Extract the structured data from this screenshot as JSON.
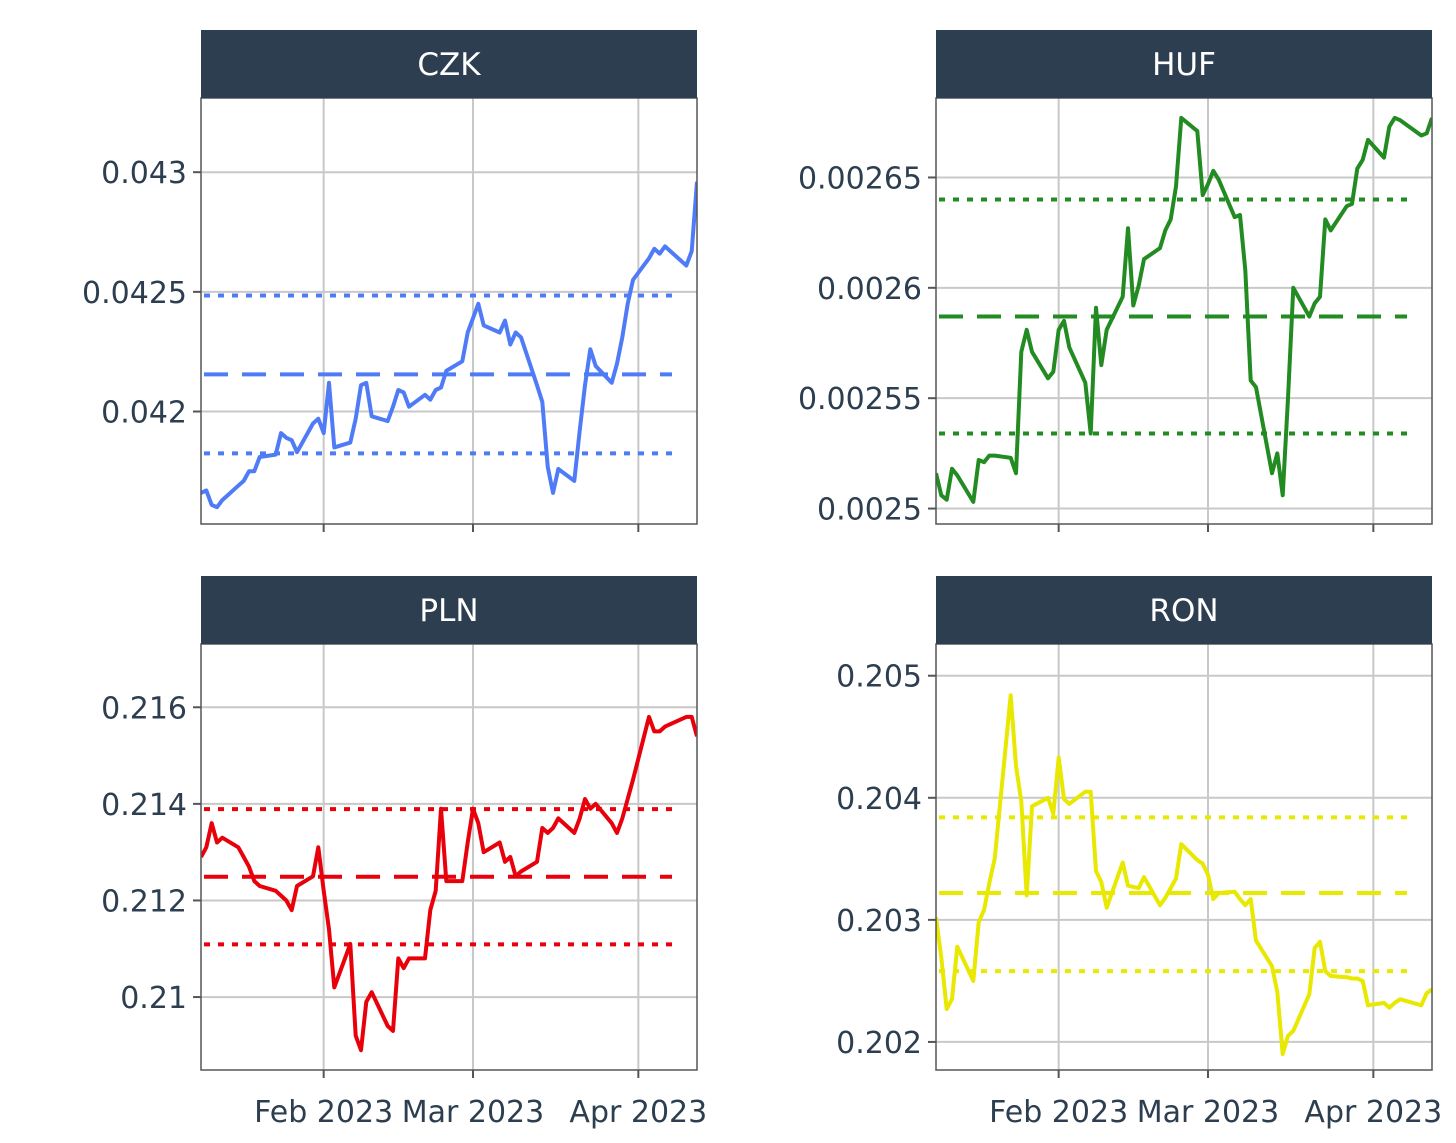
{
  "chart_data": {
    "type": "line",
    "layout": "facet-grid-2x2",
    "x_ticks": [
      {
        "date": "2023-02-01",
        "label": "Feb 2023"
      },
      {
        "date": "2023-03-01",
        "label": "Mar 2023"
      },
      {
        "date": "2023-04-01",
        "label": "Apr 2023"
      }
    ],
    "x_range": [
      "2023-01-09",
      "2023-04-12"
    ],
    "reference_lines": {
      "dashed": "mean",
      "dotted": "mean ± 1 sd"
    },
    "facets": [
      {
        "title": "CZK",
        "color": "#4f7bf7",
        "y_ticks": [
          {
            "v": 0.042,
            "label": "0.042"
          },
          {
            "v": 0.0425,
            "label": "0.0425"
          },
          {
            "v": 0.043,
            "label": "0.043"
          }
        ],
        "ylim": [
          0.04153,
          0.04331
        ],
        "mean": 0.042155,
        "lower": 0.041825,
        "upper": 0.042485,
        "x": [
          "2023-01-09",
          "2023-01-10",
          "2023-01-11",
          "2023-01-12",
          "2023-01-13",
          "2023-01-14",
          "2023-01-16",
          "2023-01-17",
          "2023-01-18",
          "2023-01-19",
          "2023-01-20",
          "2023-01-23",
          "2023-01-24",
          "2023-01-25",
          "2023-01-26",
          "2023-01-27",
          "2023-01-30",
          "2023-01-31",
          "2023-02-01",
          "2023-02-02",
          "2023-02-03",
          "2023-02-06",
          "2023-02-07",
          "2023-02-08",
          "2023-02-09",
          "2023-02-10",
          "2023-02-13",
          "2023-02-14",
          "2023-02-15",
          "2023-02-16",
          "2023-02-17",
          "2023-02-20",
          "2023-02-21",
          "2023-02-22",
          "2023-02-23",
          "2023-02-24",
          "2023-02-27",
          "2023-02-28",
          "2023-03-01",
          "2023-03-02",
          "2023-03-03",
          "2023-03-06",
          "2023-03-07",
          "2023-03-08",
          "2023-03-09",
          "2023-03-10",
          "2023-03-13",
          "2023-03-14",
          "2023-03-15",
          "2023-03-16",
          "2023-03-17",
          "2023-03-20",
          "2023-03-21",
          "2023-03-22",
          "2023-03-23",
          "2023-03-24",
          "2023-03-27",
          "2023-03-28",
          "2023-03-29",
          "2023-03-30",
          "2023-03-31",
          "2023-04-03",
          "2023-04-04",
          "2023-04-05",
          "2023-04-06",
          "2023-04-10",
          "2023-04-11",
          "2023-04-12"
        ],
        "y": [
          0.04166,
          0.04167,
          0.04161,
          0.0416,
          0.04163,
          0.04165,
          0.04169,
          0.04171,
          0.04175,
          0.04175,
          0.04181,
          0.04182,
          0.04191,
          0.04189,
          0.04188,
          0.04183,
          0.04195,
          0.04197,
          0.04191,
          0.04212,
          0.04185,
          0.04187,
          0.04197,
          0.04211,
          0.04212,
          0.04198,
          0.04196,
          0.04202,
          0.04209,
          0.04208,
          0.04202,
          0.04207,
          0.04205,
          0.04209,
          0.0421,
          0.04217,
          0.04221,
          0.04233,
          0.04239,
          0.04245,
          0.04236,
          0.04233,
          0.04238,
          0.04228,
          0.04233,
          0.04231,
          0.04211,
          0.04204,
          0.04177,
          0.04166,
          0.04176,
          0.04171,
          0.04192,
          0.04211,
          0.04226,
          0.04219,
          0.04212,
          0.0422,
          0.04231,
          0.04245,
          0.04255,
          0.04264,
          0.04268,
          0.04266,
          0.04269,
          0.04261,
          0.04267,
          0.04296
        ]
      },
      {
        "title": "HUF",
        "color": "#228b22",
        "y_ticks": [
          {
            "v": 0.0025,
            "label": "0.0025"
          },
          {
            "v": 0.00255,
            "label": "0.00255"
          },
          {
            "v": 0.0026,
            "label": "0.0026"
          },
          {
            "v": 0.00265,
            "label": "0.00265"
          }
        ],
        "ylim": [
          0.002493,
          0.002686
        ],
        "mean": 0.002587,
        "lower": 0.002534,
        "upper": 0.00264,
        "x": [
          "2023-01-09",
          "2023-01-10",
          "2023-01-11",
          "2023-01-12",
          "2023-01-13",
          "2023-01-16",
          "2023-01-17",
          "2023-01-18",
          "2023-01-19",
          "2023-01-20",
          "2023-01-23",
          "2023-01-24",
          "2023-01-25",
          "2023-01-26",
          "2023-01-27",
          "2023-01-30",
          "2023-01-31",
          "2023-02-01",
          "2023-02-02",
          "2023-02-03",
          "2023-02-06",
          "2023-02-07",
          "2023-02-08",
          "2023-02-09",
          "2023-02-10",
          "2023-02-13",
          "2023-02-14",
          "2023-02-15",
          "2023-02-16",
          "2023-02-17",
          "2023-02-20",
          "2023-02-21",
          "2023-02-22",
          "2023-02-23",
          "2023-02-24",
          "2023-02-27",
          "2023-02-28",
          "2023-03-01",
          "2023-03-02",
          "2023-03-03",
          "2023-03-06",
          "2023-03-07",
          "2023-03-08",
          "2023-03-09",
          "2023-03-10",
          "2023-03-13",
          "2023-03-14",
          "2023-03-15",
          "2023-03-16",
          "2023-03-17",
          "2023-03-20",
          "2023-03-21",
          "2023-03-22",
          "2023-03-23",
          "2023-03-24",
          "2023-03-27",
          "2023-03-28",
          "2023-03-29",
          "2023-03-30",
          "2023-03-31",
          "2023-04-03",
          "2023-04-04",
          "2023-04-05",
          "2023-04-06",
          "2023-04-10",
          "2023-04-11",
          "2023-04-12"
        ],
        "y": [
          0.002516,
          0.002506,
          0.002504,
          0.002518,
          0.002515,
          0.002503,
          0.002522,
          0.002521,
          0.002524,
          0.002524,
          0.002523,
          0.002516,
          0.002571,
          0.002581,
          0.002571,
          0.002559,
          0.002562,
          0.002581,
          0.002585,
          0.002573,
          0.002557,
          0.002534,
          0.002591,
          0.002565,
          0.002581,
          0.002596,
          0.002627,
          0.002592,
          0.002601,
          0.002613,
          0.002618,
          0.002626,
          0.002631,
          0.002646,
          0.002677,
          0.002671,
          0.002642,
          0.002647,
          0.002653,
          0.002649,
          0.002632,
          0.002633,
          0.002608,
          0.002558,
          0.002555,
          0.002516,
          0.002525,
          0.002506,
          0.00255,
          0.0026,
          0.002587,
          0.002593,
          0.002596,
          0.002631,
          0.002626,
          0.002637,
          0.002638,
          0.002654,
          0.002658,
          0.002667,
          0.002659,
          0.002673,
          0.002677,
          0.002676,
          0.002669,
          0.00267,
          0.002677
        ]
      },
      {
        "title": "PLN",
        "color": "#e8000b",
        "y_ticks": [
          {
            "v": 0.21,
            "label": "0.21"
          },
          {
            "v": 0.212,
            "label": "0.212"
          },
          {
            "v": 0.214,
            "label": "0.214"
          },
          {
            "v": 0.216,
            "label": "0.216"
          }
        ],
        "ylim": [
          0.20849,
          0.21731
        ],
        "mean": 0.21249,
        "lower": 0.21109,
        "upper": 0.21389,
        "x": [
          "2023-01-09",
          "2023-01-10",
          "2023-01-11",
          "2023-01-12",
          "2023-01-13",
          "2023-01-16",
          "2023-01-17",
          "2023-01-18",
          "2023-01-19",
          "2023-01-20",
          "2023-01-23",
          "2023-01-24",
          "2023-01-25",
          "2023-01-26",
          "2023-01-27",
          "2023-01-30",
          "2023-01-31",
          "2023-02-01",
          "2023-02-02",
          "2023-02-03",
          "2023-02-06",
          "2023-02-07",
          "2023-02-08",
          "2023-02-09",
          "2023-02-10",
          "2023-02-13",
          "2023-02-14",
          "2023-02-15",
          "2023-02-16",
          "2023-02-17",
          "2023-02-20",
          "2023-02-21",
          "2023-02-22",
          "2023-02-23",
          "2023-02-24",
          "2023-02-27",
          "2023-02-28",
          "2023-03-01",
          "2023-03-02",
          "2023-03-03",
          "2023-03-06",
          "2023-03-07",
          "2023-03-08",
          "2023-03-09",
          "2023-03-10",
          "2023-03-13",
          "2023-03-14",
          "2023-03-15",
          "2023-03-16",
          "2023-03-17",
          "2023-03-20",
          "2023-03-21",
          "2023-03-22",
          "2023-03-23",
          "2023-03-24",
          "2023-03-27",
          "2023-03-28",
          "2023-03-29",
          "2023-03-30",
          "2023-03-31",
          "2023-04-03",
          "2023-04-04",
          "2023-04-05",
          "2023-04-06",
          "2023-04-10",
          "2023-04-11",
          "2023-04-12"
        ],
        "y": [
          0.2129,
          0.2131,
          0.2136,
          0.2132,
          0.2133,
          0.2131,
          0.2129,
          0.2127,
          0.2124,
          0.2123,
          0.2122,
          0.2121,
          0.212,
          0.2118,
          0.2123,
          0.2125,
          0.2131,
          0.2122,
          0.2114,
          0.2102,
          0.2111,
          0.2092,
          0.2089,
          0.2099,
          0.2101,
          0.2094,
          0.2093,
          0.2108,
          0.2106,
          0.2108,
          0.2108,
          0.2118,
          0.2122,
          0.2139,
          0.2124,
          0.2124,
          0.2132,
          0.2139,
          0.2136,
          0.213,
          0.2132,
          0.2128,
          0.2129,
          0.2125,
          0.2126,
          0.2128,
          0.2135,
          0.2134,
          0.2135,
          0.2137,
          0.2134,
          0.2137,
          0.2141,
          0.2139,
          0.214,
          0.2136,
          0.2134,
          0.2137,
          0.2141,
          0.2145,
          0.2158,
          0.2155,
          0.2155,
          0.2156,
          0.2158,
          0.2158,
          0.2154
        ]
      },
      {
        "title": "RON",
        "color": "#e8e800",
        "y_ticks": [
          {
            "v": 0.202,
            "label": "0.202"
          },
          {
            "v": 0.203,
            "label": "0.203"
          },
          {
            "v": 0.204,
            "label": "0.204"
          },
          {
            "v": 0.205,
            "label": "0.205"
          }
        ],
        "ylim": [
          0.20177,
          0.20526
        ],
        "mean": 0.20322,
        "lower": 0.20258,
        "upper": 0.20384,
        "x": [
          "2023-01-09",
          "2023-01-10",
          "2023-01-11",
          "2023-01-12",
          "2023-01-13",
          "2023-01-16",
          "2023-01-17",
          "2023-01-18",
          "2023-01-19",
          "2023-01-20",
          "2023-01-23",
          "2023-01-24",
          "2023-01-25",
          "2023-01-26",
          "2023-01-27",
          "2023-01-30",
          "2023-01-31",
          "2023-02-01",
          "2023-02-02",
          "2023-02-03",
          "2023-02-06",
          "2023-02-07",
          "2023-02-08",
          "2023-02-09",
          "2023-02-10",
          "2023-02-13",
          "2023-02-14",
          "2023-02-15",
          "2023-02-16",
          "2023-02-17",
          "2023-02-20",
          "2023-02-21",
          "2023-02-22",
          "2023-02-23",
          "2023-02-24",
          "2023-02-27",
          "2023-02-28",
          "2023-03-01",
          "2023-03-02",
          "2023-03-03",
          "2023-03-06",
          "2023-03-07",
          "2023-03-08",
          "2023-03-09",
          "2023-03-10",
          "2023-03-13",
          "2023-03-14",
          "2023-03-15",
          "2023-03-16",
          "2023-03-17",
          "2023-03-20",
          "2023-03-21",
          "2023-03-22",
          "2023-03-23",
          "2023-03-24",
          "2023-03-27",
          "2023-03-28",
          "2023-03-29",
          "2023-03-30",
          "2023-03-31",
          "2023-04-03",
          "2023-04-04",
          "2023-04-05",
          "2023-04-06",
          "2023-04-10",
          "2023-04-11",
          "2023-04-12"
        ],
        "y": [
          0.20302,
          0.20269,
          0.20227,
          0.20235,
          0.20278,
          0.2025,
          0.20298,
          0.20308,
          0.2033,
          0.2035,
          0.20484,
          0.20426,
          0.20397,
          0.2032,
          0.20393,
          0.204,
          0.20387,
          0.20433,
          0.20399,
          0.20395,
          0.20405,
          0.20405,
          0.2034,
          0.20331,
          0.2031,
          0.20347,
          0.20328,
          0.20327,
          0.20326,
          0.20335,
          0.20312,
          0.20318,
          0.20326,
          0.20334,
          0.20362,
          0.20349,
          0.20346,
          0.20337,
          0.20317,
          0.20322,
          0.20323,
          0.20317,
          0.20312,
          0.20317,
          0.20283,
          0.20262,
          0.20241,
          0.2019,
          0.20205,
          0.20209,
          0.20239,
          0.20277,
          0.20282,
          0.20258,
          0.20254,
          0.20253,
          0.20252,
          0.20252,
          0.2025,
          0.2023,
          0.20232,
          0.20228,
          0.20232,
          0.20235,
          0.2023,
          0.2024,
          0.20243
        ]
      }
    ]
  }
}
